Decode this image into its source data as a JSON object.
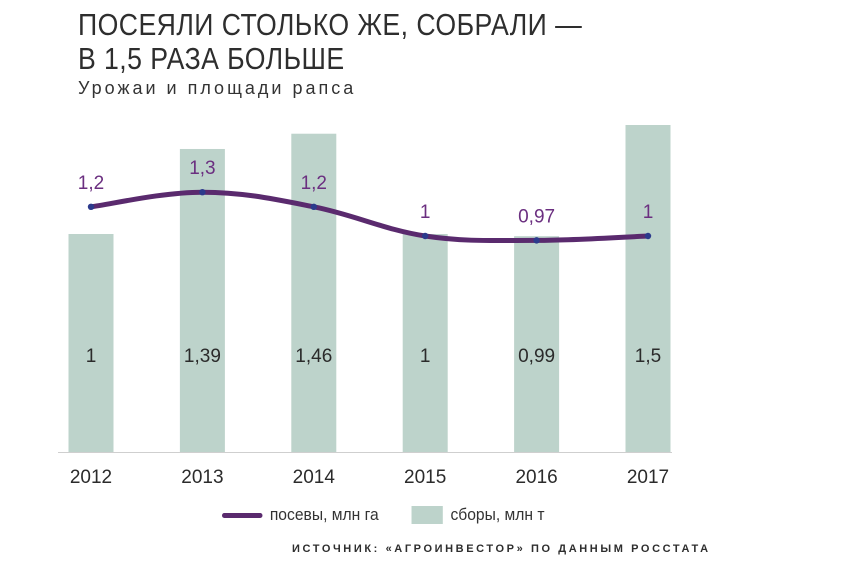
{
  "title": {
    "line1": "ПОСЕЯЛИ СТОЛЬКО ЖЕ, СОБРАЛИ —",
    "line2": "В 1,5 РАЗА БОЛЬШЕ"
  },
  "subtitle": "Урожаи и площади рапса",
  "source": "ИСТОЧНИК: «АГРОИНВЕСТОР» ПО ДАННЫМ РОССТАТА",
  "chart_data": {
    "type": "bar",
    "categories": [
      "2012",
      "2013",
      "2014",
      "2015",
      "2016",
      "2017"
    ],
    "series": [
      {
        "name": "сборы, млн т",
        "type": "bar",
        "values": [
          1,
          1.39,
          1.46,
          1,
          0.99,
          1.5
        ],
        "labels": [
          "1",
          "1,39",
          "1,46",
          "1",
          "0,99",
          "1,5"
        ],
        "color": "#bdd3cb"
      },
      {
        "name": "посевы, млн га",
        "type": "line",
        "values": [
          1.2,
          1.3,
          1.2,
          1,
          0.97,
          1
        ],
        "labels": [
          "1,2",
          "1,3",
          "1,2",
          "1",
          "0,97",
          "1"
        ],
        "color": "#5a2a6e",
        "label_color": "#6b2f80",
        "marker_color": "#2c3a8c"
      }
    ],
    "grid": false,
    "legend": "bottom"
  }
}
